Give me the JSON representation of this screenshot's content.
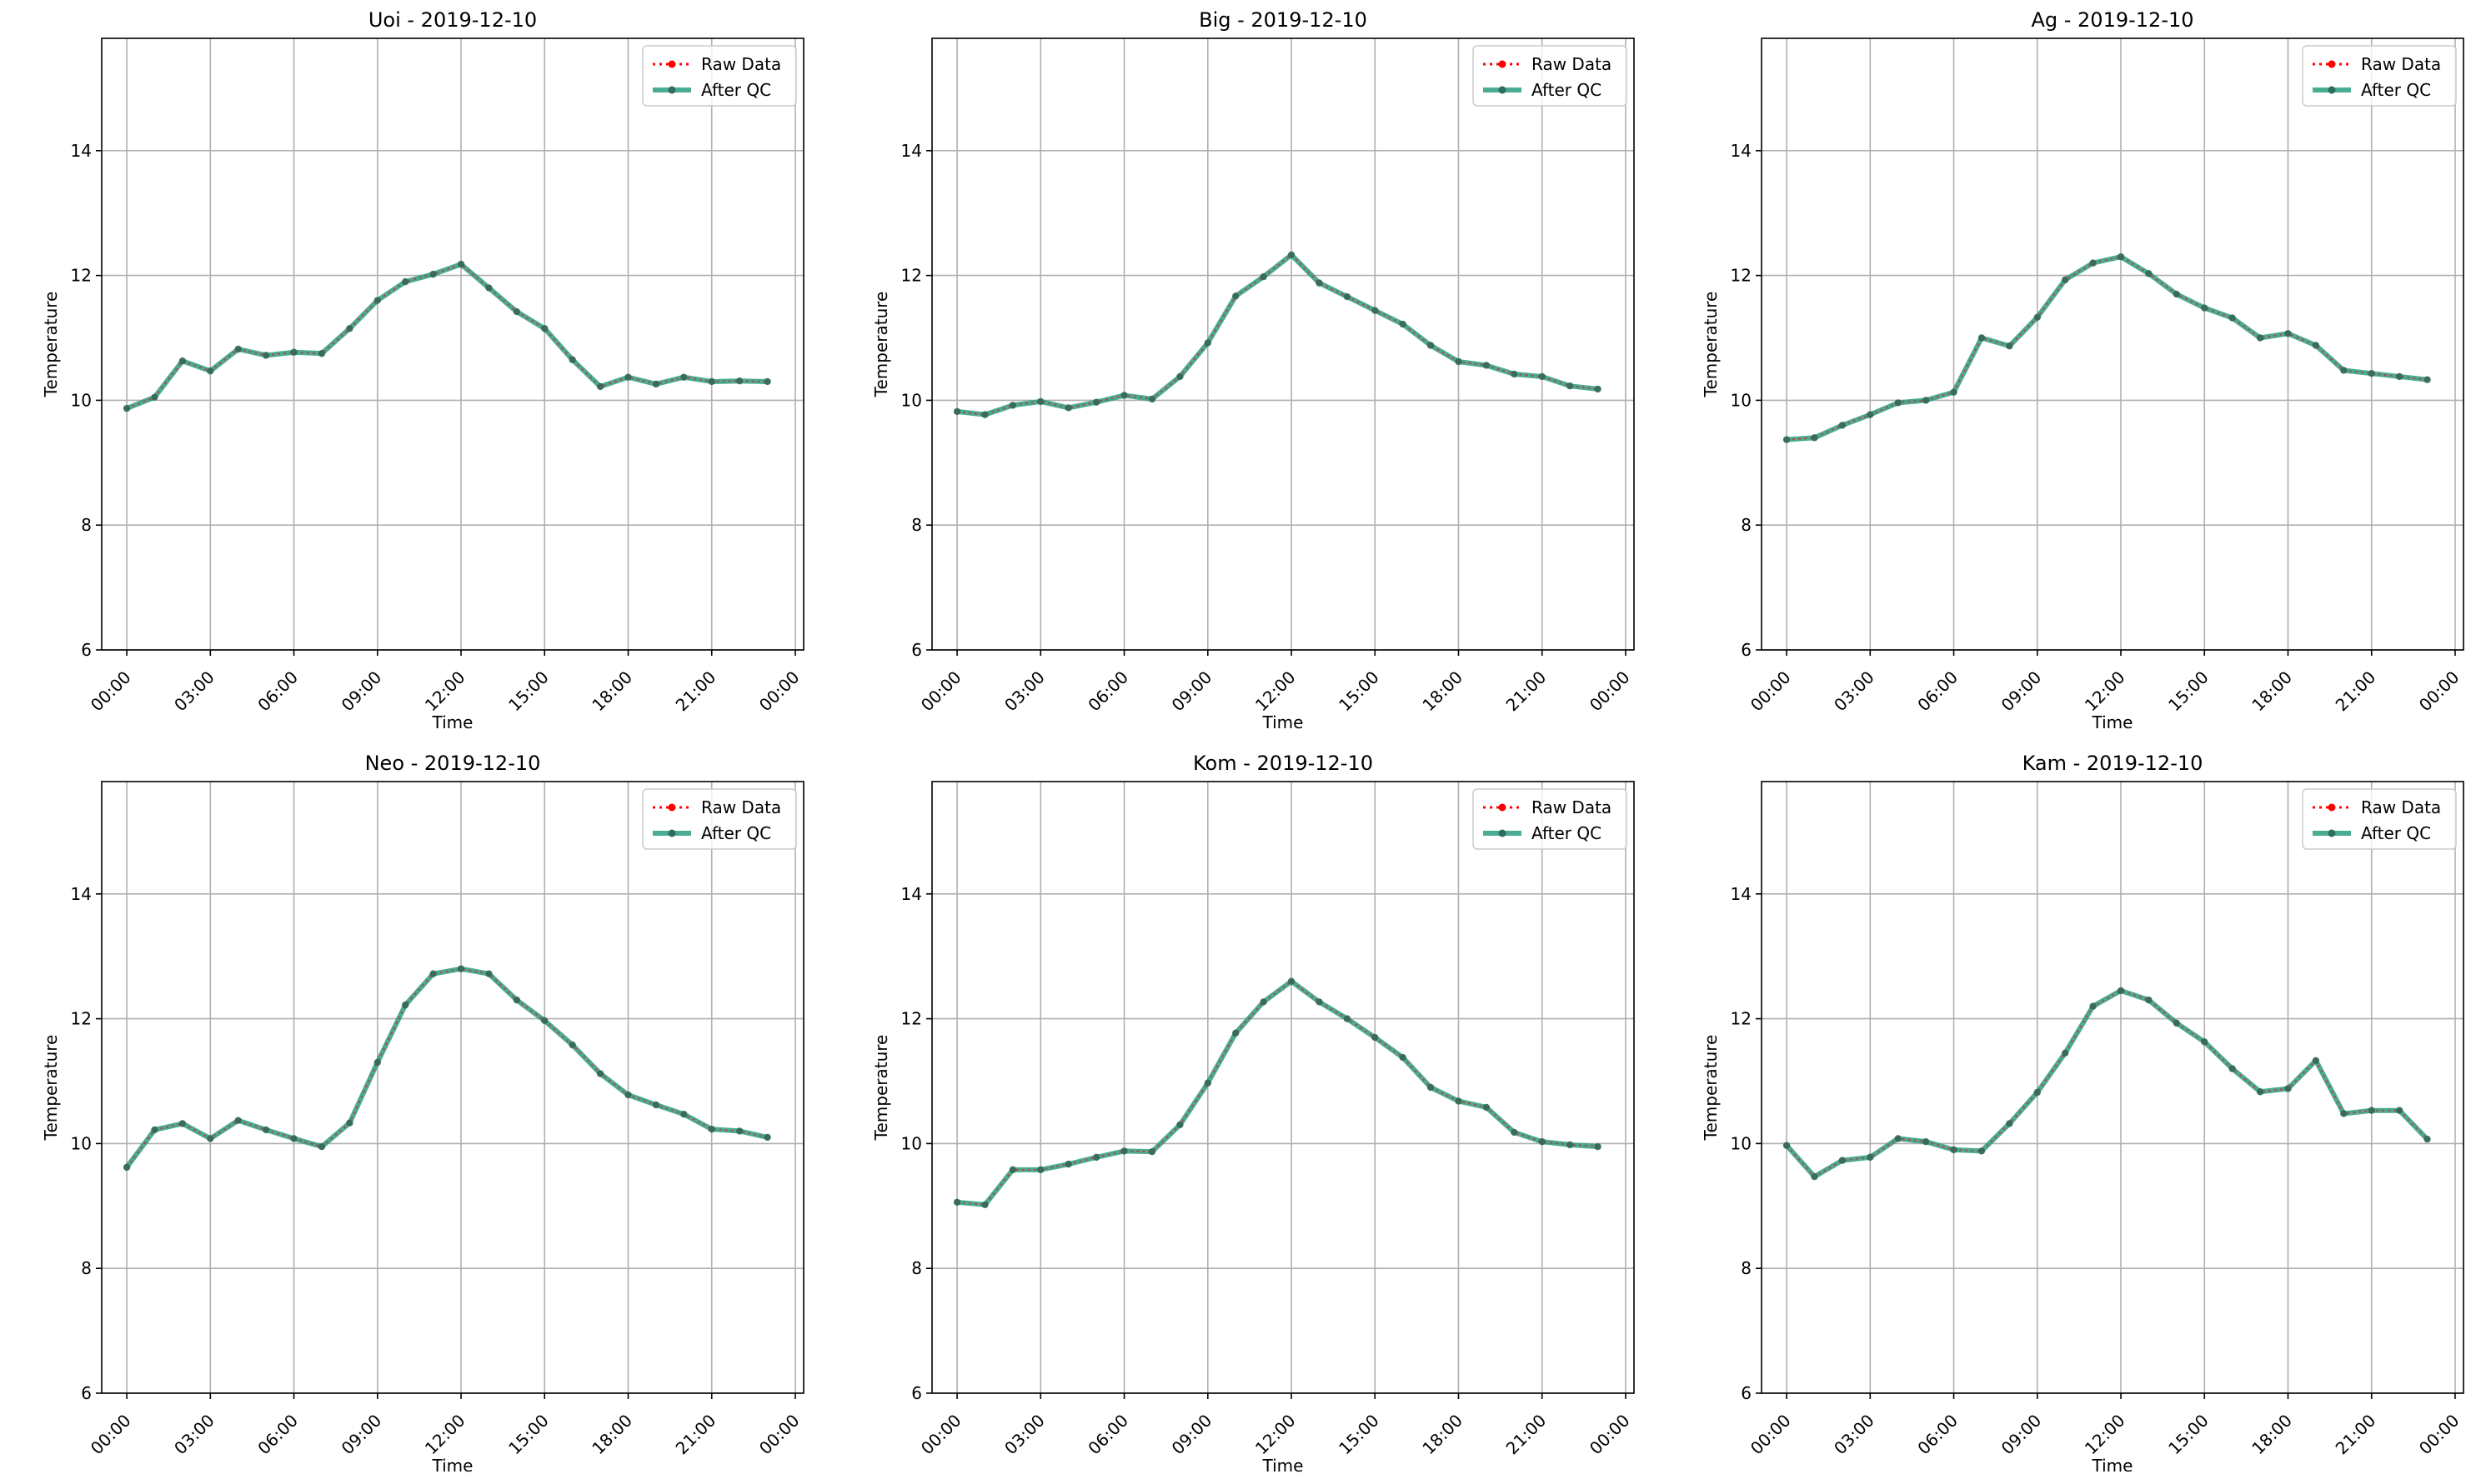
{
  "colors": {
    "raw": "#ff0000",
    "qc": "#2a9d7f",
    "marker": "#2f6f5a",
    "grid": "#b0b0b0"
  },
  "legend": {
    "raw_label": "Raw Data",
    "qc_label": "After QC"
  },
  "chart_data": [
    {
      "type": "line",
      "title": "Uoi - 2019-12-10",
      "xlabel": "Time",
      "ylabel": "Temperature",
      "xlim": [
        -0.9,
        24.3
      ],
      "ylim": [
        6,
        15.8
      ],
      "xticks": [
        0,
        3,
        6,
        9,
        12,
        15,
        18,
        21,
        24
      ],
      "xtick_labels": [
        "00:00",
        "03:00",
        "06:00",
        "09:00",
        "12:00",
        "15:00",
        "18:00",
        "21:00",
        "00:00"
      ],
      "yticks": [
        6,
        8,
        10,
        12,
        14
      ],
      "ytick_labels": [
        "6",
        "8",
        "10",
        "12",
        "14"
      ],
      "grid": true,
      "legend_position": "top-right",
      "x": [
        0,
        1,
        2,
        3,
        4,
        5,
        6,
        7,
        8,
        9,
        10,
        11,
        12,
        13,
        14,
        15,
        16,
        17,
        18,
        19,
        20,
        21,
        22,
        23
      ],
      "series": [
        {
          "name": "Raw Data",
          "values": [
            9.87,
            10.05,
            10.63,
            10.47,
            10.82,
            10.72,
            10.77,
            10.75,
            11.15,
            11.6,
            11.9,
            12.02,
            12.18,
            11.8,
            11.42,
            11.15,
            10.65,
            10.22,
            10.37,
            10.26,
            10.37,
            10.3,
            10.31,
            10.3
          ]
        },
        {
          "name": "After QC",
          "values": [
            9.87,
            10.05,
            10.63,
            10.47,
            10.82,
            10.72,
            10.77,
            10.75,
            11.15,
            11.6,
            11.9,
            12.02,
            12.18,
            11.8,
            11.42,
            11.15,
            10.65,
            10.22,
            10.37,
            10.26,
            10.37,
            10.3,
            10.31,
            10.3
          ]
        }
      ]
    },
    {
      "type": "line",
      "title": "Big - 2019-12-10",
      "xlabel": "Time",
      "ylabel": "Temperature",
      "xlim": [
        -0.9,
        24.3
      ],
      "ylim": [
        6,
        15.8
      ],
      "xticks": [
        0,
        3,
        6,
        9,
        12,
        15,
        18,
        21,
        24
      ],
      "xtick_labels": [
        "00:00",
        "03:00",
        "06:00",
        "09:00",
        "12:00",
        "15:00",
        "18:00",
        "21:00",
        "00:00"
      ],
      "yticks": [
        6,
        8,
        10,
        12,
        14
      ],
      "ytick_labels": [
        "6",
        "8",
        "10",
        "12",
        "14"
      ],
      "grid": true,
      "legend_position": "top-right",
      "x": [
        0,
        1,
        2,
        3,
        4,
        5,
        6,
        7,
        8,
        9,
        10,
        11,
        12,
        13,
        14,
        15,
        16,
        17,
        18,
        19,
        20,
        21,
        22,
        23
      ],
      "series": [
        {
          "name": "Raw Data",
          "values": [
            9.82,
            9.77,
            9.92,
            9.98,
            9.88,
            9.97,
            10.08,
            10.02,
            10.38,
            10.92,
            11.67,
            11.98,
            12.33,
            11.88,
            11.66,
            11.44,
            11.22,
            10.88,
            10.62,
            10.56,
            10.42,
            10.38,
            10.23,
            10.18
          ]
        },
        {
          "name": "After QC",
          "values": [
            9.82,
            9.77,
            9.92,
            9.98,
            9.88,
            9.97,
            10.08,
            10.02,
            10.38,
            10.92,
            11.67,
            11.98,
            12.33,
            11.88,
            11.66,
            11.44,
            11.22,
            10.88,
            10.62,
            10.56,
            10.42,
            10.38,
            10.23,
            10.18
          ]
        }
      ]
    },
    {
      "type": "line",
      "title": "Ag - 2019-12-10",
      "xlabel": "Time",
      "ylabel": "Temperature",
      "xlim": [
        -0.9,
        24.3
      ],
      "ylim": [
        6,
        15.8
      ],
      "xticks": [
        0,
        3,
        6,
        9,
        12,
        15,
        18,
        21,
        24
      ],
      "xtick_labels": [
        "00:00",
        "03:00",
        "06:00",
        "09:00",
        "12:00",
        "15:00",
        "18:00",
        "21:00",
        "00:00"
      ],
      "yticks": [
        6,
        8,
        10,
        12,
        14
      ],
      "ytick_labels": [
        "6",
        "8",
        "10",
        "12",
        "14"
      ],
      "grid": true,
      "legend_position": "top-right",
      "x": [
        0,
        1,
        2,
        3,
        4,
        5,
        6,
        7,
        8,
        9,
        10,
        11,
        12,
        13,
        14,
        15,
        16,
        17,
        18,
        19,
        20,
        21,
        22,
        23
      ],
      "series": [
        {
          "name": "Raw Data",
          "values": [
            9.37,
            9.4,
            9.6,
            9.77,
            9.96,
            10.0,
            10.13,
            11.0,
            10.87,
            11.33,
            11.93,
            12.2,
            12.3,
            12.03,
            11.7,
            11.48,
            11.32,
            11.0,
            11.07,
            10.88,
            10.48,
            10.43,
            10.38,
            10.33
          ]
        },
        {
          "name": "After QC",
          "values": [
            9.37,
            9.4,
            9.6,
            9.77,
            9.96,
            10.0,
            10.13,
            11.0,
            10.87,
            11.33,
            11.93,
            12.2,
            12.3,
            12.03,
            11.7,
            11.48,
            11.32,
            11.0,
            11.07,
            10.88,
            10.48,
            10.43,
            10.38,
            10.33
          ]
        }
      ]
    },
    {
      "type": "line",
      "title": "Neo - 2019-12-10",
      "xlabel": "Time",
      "ylabel": "Temperature",
      "xlim": [
        -0.9,
        24.3
      ],
      "ylim": [
        6,
        15.8
      ],
      "xticks": [
        0,
        3,
        6,
        9,
        12,
        15,
        18,
        21,
        24
      ],
      "xtick_labels": [
        "00:00",
        "03:00",
        "06:00",
        "09:00",
        "12:00",
        "15:00",
        "18:00",
        "21:00",
        "00:00"
      ],
      "yticks": [
        6,
        8,
        10,
        12,
        14
      ],
      "ytick_labels": [
        "6",
        "8",
        "10",
        "12",
        "14"
      ],
      "grid": true,
      "legend_position": "top-right",
      "x": [
        0,
        1,
        2,
        3,
        4,
        5,
        6,
        7,
        8,
        9,
        10,
        11,
        12,
        13,
        14,
        15,
        16,
        17,
        18,
        19,
        20,
        21,
        22,
        23
      ],
      "series": [
        {
          "name": "Raw Data",
          "values": [
            9.62,
            10.22,
            10.32,
            10.08,
            10.37,
            10.22,
            10.08,
            9.95,
            10.33,
            11.3,
            12.22,
            12.72,
            12.8,
            12.72,
            12.3,
            11.97,
            11.58,
            11.12,
            10.78,
            10.62,
            10.47,
            10.23,
            10.2,
            10.1
          ]
        },
        {
          "name": "After QC",
          "values": [
            9.62,
            10.22,
            10.32,
            10.08,
            10.37,
            10.22,
            10.08,
            9.95,
            10.33,
            11.3,
            12.22,
            12.72,
            12.8,
            12.72,
            12.3,
            11.97,
            11.58,
            11.12,
            10.78,
            10.62,
            10.47,
            10.23,
            10.2,
            10.1
          ]
        }
      ]
    },
    {
      "type": "line",
      "title": "Kom - 2019-12-10",
      "xlabel": "Time",
      "ylabel": "Temperature",
      "xlim": [
        -0.9,
        24.3
      ],
      "ylim": [
        6,
        15.8
      ],
      "xticks": [
        0,
        3,
        6,
        9,
        12,
        15,
        18,
        21,
        24
      ],
      "xtick_labels": [
        "00:00",
        "03:00",
        "06:00",
        "09:00",
        "12:00",
        "15:00",
        "18:00",
        "21:00",
        "00:00"
      ],
      "yticks": [
        6,
        8,
        10,
        12,
        14
      ],
      "ytick_labels": [
        "6",
        "8",
        "10",
        "12",
        "14"
      ],
      "grid": true,
      "legend_position": "top-right",
      "x": [
        0,
        1,
        2,
        3,
        4,
        5,
        6,
        7,
        8,
        9,
        10,
        11,
        12,
        13,
        14,
        15,
        16,
        17,
        18,
        19,
        20,
        21,
        22,
        23
      ],
      "series": [
        {
          "name": "Raw Data",
          "values": [
            9.06,
            9.02,
            9.58,
            9.58,
            9.67,
            9.78,
            9.88,
            9.87,
            10.3,
            10.97,
            11.77,
            12.27,
            12.6,
            12.27,
            12.0,
            11.7,
            11.38,
            10.9,
            10.68,
            10.58,
            10.18,
            10.03,
            9.98,
            9.95
          ]
        },
        {
          "name": "After QC",
          "values": [
            9.06,
            9.02,
            9.58,
            9.58,
            9.67,
            9.78,
            9.88,
            9.87,
            10.3,
            10.97,
            11.77,
            12.27,
            12.6,
            12.27,
            12.0,
            11.7,
            11.38,
            10.9,
            10.68,
            10.58,
            10.18,
            10.03,
            9.98,
            9.95
          ]
        }
      ]
    },
    {
      "type": "line",
      "title": "Kam - 2019-12-10",
      "xlabel": "Time",
      "ylabel": "Temperature",
      "xlim": [
        -0.9,
        24.3
      ],
      "ylim": [
        6,
        15.8
      ],
      "xticks": [
        0,
        3,
        6,
        9,
        12,
        15,
        18,
        21,
        24
      ],
      "xtick_labels": [
        "00:00",
        "03:00",
        "06:00",
        "09:00",
        "12:00",
        "15:00",
        "18:00",
        "21:00",
        "00:00"
      ],
      "yticks": [
        6,
        8,
        10,
        12,
        14
      ],
      "ytick_labels": [
        "6",
        "8",
        "10",
        "12",
        "14"
      ],
      "grid": true,
      "legend_position": "top-right",
      "x": [
        0,
        1,
        2,
        3,
        4,
        5,
        6,
        7,
        8,
        9,
        10,
        11,
        12,
        13,
        14,
        15,
        16,
        17,
        18,
        19,
        20,
        21,
        22,
        23
      ],
      "series": [
        {
          "name": "Raw Data",
          "values": [
            9.97,
            9.47,
            9.73,
            9.78,
            10.08,
            10.03,
            9.9,
            9.88,
            10.32,
            10.82,
            11.45,
            12.2,
            12.45,
            12.3,
            11.93,
            11.63,
            11.2,
            10.83,
            10.88,
            11.33,
            10.48,
            10.53,
            10.53,
            10.07
          ]
        },
        {
          "name": "After QC",
          "values": [
            9.97,
            9.47,
            9.73,
            9.78,
            10.08,
            10.03,
            9.9,
            9.88,
            10.32,
            10.82,
            11.45,
            12.2,
            12.45,
            12.3,
            11.93,
            11.63,
            11.2,
            10.83,
            10.88,
            11.33,
            10.48,
            10.53,
            10.53,
            10.07
          ]
        }
      ]
    }
  ]
}
